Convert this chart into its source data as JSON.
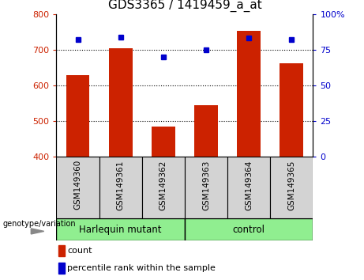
{
  "title": "GDS3365 / 1419459_a_at",
  "categories": [
    "GSM149360",
    "GSM149361",
    "GSM149362",
    "GSM149363",
    "GSM149364",
    "GSM149365"
  ],
  "counts": [
    628,
    703,
    484,
    545,
    752,
    661
  ],
  "percentile_ranks": [
    82,
    84,
    70,
    75,
    83,
    82
  ],
  "ylim_left": [
    400,
    800
  ],
  "ylim_right": [
    0,
    100
  ],
  "yticks_left": [
    400,
    500,
    600,
    700,
    800
  ],
  "yticks_right": [
    0,
    25,
    50,
    75,
    100
  ],
  "ytick_labels_right": [
    "0",
    "25",
    "50",
    "75",
    "100%"
  ],
  "bar_color": "#CC2200",
  "dot_color": "#0000CC",
  "gridline_vals": [
    500,
    600,
    700
  ],
  "group1_label": "Harlequin mutant",
  "group2_label": "control",
  "group_color": "#90EE90",
  "sample_box_color": "#D3D3D3",
  "genotype_label": "genotype/variation",
  "legend_count": "count",
  "legend_percentile": "percentile rank within the sample",
  "bar_width": 0.55
}
